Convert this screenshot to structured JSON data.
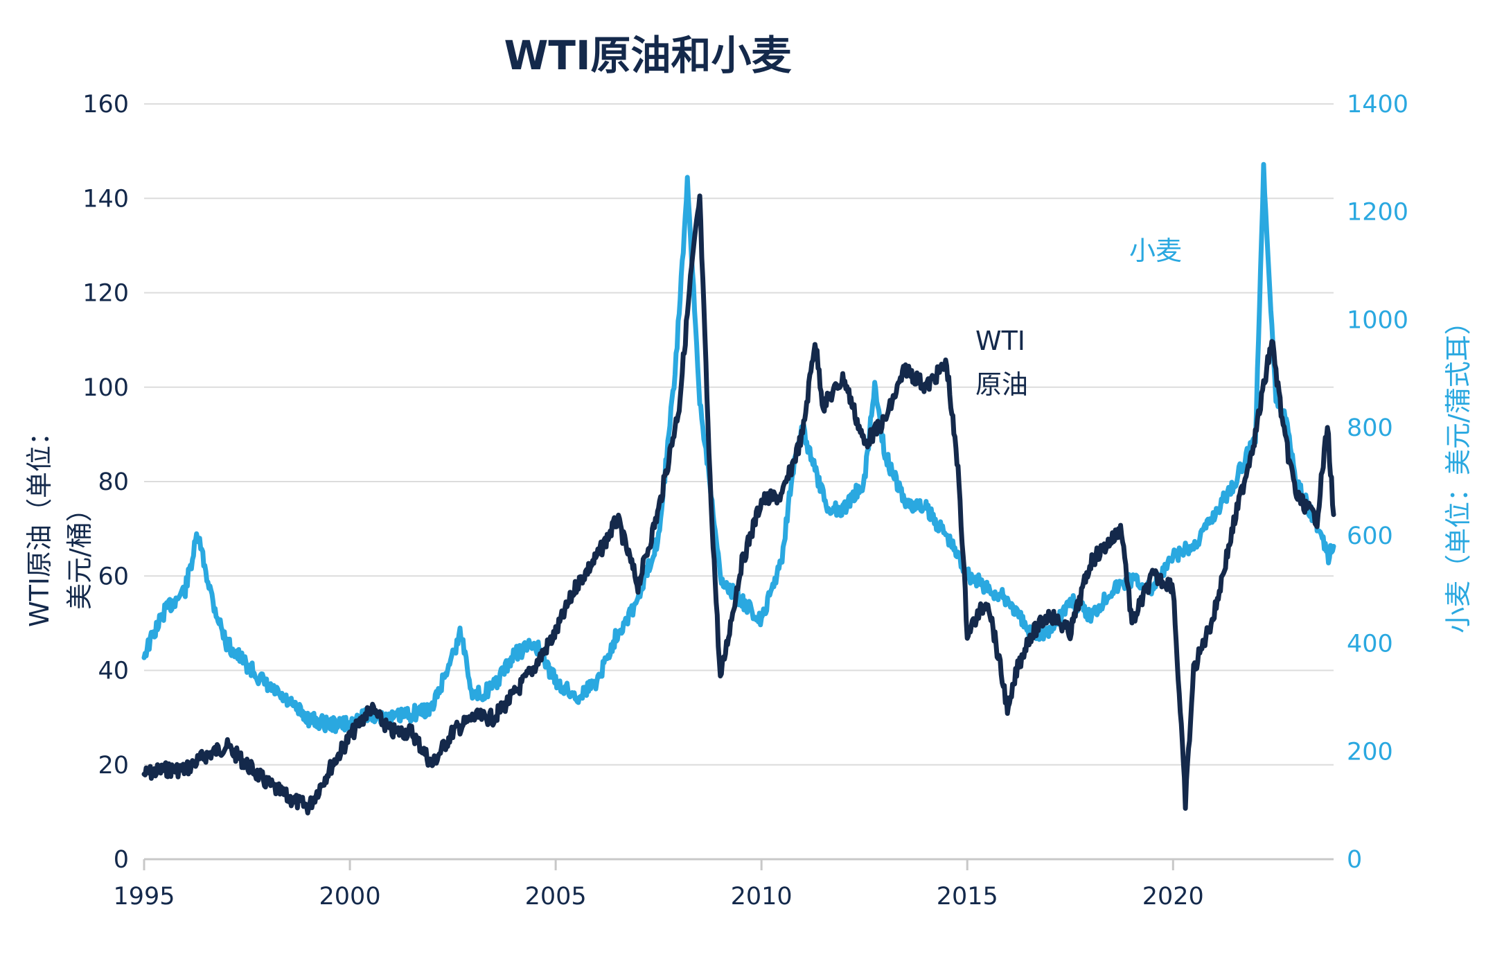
{
  "chart_data": {
    "type": "line",
    "title": "WTI原油和小麦",
    "xlabel": "",
    "ylabel_left_lines": [
      "WTI原油（单位：",
      "美元/桶）"
    ],
    "ylabel_right": "小麦（单位：美元/蒲式耳）",
    "x_ticks": [
      "1995",
      "2000",
      "2005",
      "2010",
      "2015",
      "2020"
    ],
    "x_range": [
      1995,
      2023.9
    ],
    "y_left": {
      "range": [
        0,
        160
      ],
      "ticks": [
        "0",
        "20",
        "40",
        "60",
        "80",
        "100",
        "120",
        "140",
        "160"
      ]
    },
    "y_right": {
      "range": [
        0,
        1400
      ],
      "ticks": [
        "0",
        "200",
        "400",
        "600",
        "800",
        "1000",
        "1200",
        "1400"
      ]
    },
    "colors": {
      "wti": "#14294b",
      "wheat": "#2aa8e0",
      "grid": "#dcdcdc",
      "axis_text_left": "#14294b",
      "axis_text_right": "#2aa8e0"
    },
    "annotations": [
      {
        "id": "wti",
        "lines": [
          "WTI",
          "原油"
        ]
      },
      {
        "id": "wheat",
        "lines": [
          "小麦"
        ]
      }
    ],
    "series": [
      {
        "key": "wti",
        "axis": "left",
        "x": [
          1995.0,
          1995.5,
          1996.0,
          1996.5,
          1997.0,
          1997.5,
          1998.0,
          1998.5,
          1999.0,
          1999.5,
          2000.0,
          2000.5,
          2001.0,
          2001.5,
          2002.0,
          2002.5,
          2003.0,
          2003.5,
          2004.0,
          2004.5,
          2005.0,
          2005.5,
          2006.0,
          2006.5,
          2007.0,
          2007.5,
          2008.0,
          2008.3,
          2008.5,
          2008.75,
          2009.0,
          2009.5,
          2010.0,
          2010.5,
          2011.0,
          2011.3,
          2011.5,
          2012.0,
          2012.5,
          2013.0,
          2013.5,
          2014.0,
          2014.5,
          2014.8,
          2015.0,
          2015.5,
          2016.0,
          2016.2,
          2016.5,
          2017.0,
          2017.5,
          2018.0,
          2018.75,
          2019.0,
          2019.5,
          2020.0,
          2020.3,
          2020.5,
          2021.0,
          2021.5,
          2022.0,
          2022.4,
          2022.7,
          2023.0,
          2023.5,
          2023.75,
          2023.9
        ],
        "y": [
          18,
          19,
          19,
          22,
          24,
          20,
          16,
          13,
          11,
          19,
          26,
          32,
          27,
          27,
          20,
          27,
          30,
          30,
          35,
          41,
          48,
          58,
          64,
          72,
          58,
          74,
          96,
          125,
          140,
          80,
          38,
          62,
          76,
          77,
          90,
          110,
          96,
          102,
          88,
          93,
          104,
          100,
          105,
          80,
          48,
          55,
          31,
          40,
          47,
          52,
          48,
          63,
          70,
          50,
          60,
          58,
          12,
          40,
          52,
          72,
          90,
          110,
          90,
          77,
          72,
          92,
          73
        ]
      },
      {
        "key": "wheat",
        "axis": "right",
        "x": [
          1995.0,
          1995.5,
          1996.0,
          1996.3,
          1996.7,
          1997.0,
          1997.5,
          1998.0,
          1998.5,
          1999.0,
          1999.5,
          2000.0,
          2000.5,
          2001.0,
          2001.5,
          2002.0,
          2002.5,
          2002.7,
          2003.0,
          2003.5,
          2004.0,
          2004.5,
          2005.0,
          2005.5,
          2006.0,
          2006.5,
          2007.0,
          2007.5,
          2007.9,
          2008.2,
          2008.5,
          2008.75,
          2009.0,
          2009.5,
          2010.0,
          2010.5,
          2010.75,
          2011.0,
          2011.3,
          2011.6,
          2012.0,
          2012.5,
          2012.75,
          2013.0,
          2013.5,
          2014.0,
          2014.5,
          2015.0,
          2015.5,
          2016.0,
          2016.5,
          2017.0,
          2017.5,
          2018.0,
          2018.5,
          2019.0,
          2019.5,
          2020.0,
          2020.5,
          2021.0,
          2021.5,
          2022.0,
          2022.2,
          2022.5,
          2022.75,
          2023.0,
          2023.5,
          2023.75,
          2023.9
        ],
        "y": [
          380,
          460,
          500,
          600,
          470,
          400,
          360,
          320,
          290,
          260,
          250,
          250,
          270,
          260,
          270,
          280,
          380,
          420,
          300,
          320,
          380,
          400,
          330,
          300,
          330,
          420,
          480,
          600,
          900,
          1250,
          850,
          700,
          520,
          480,
          440,
          560,
          720,
          800,
          720,
          650,
          650,
          700,
          880,
          750,
          660,
          650,
          600,
          530,
          500,
          480,
          420,
          420,
          480,
          450,
          500,
          520,
          500,
          560,
          580,
          640,
          700,
          780,
          1280,
          850,
          820,
          700,
          620,
          560,
          580
        ]
      }
    ]
  }
}
